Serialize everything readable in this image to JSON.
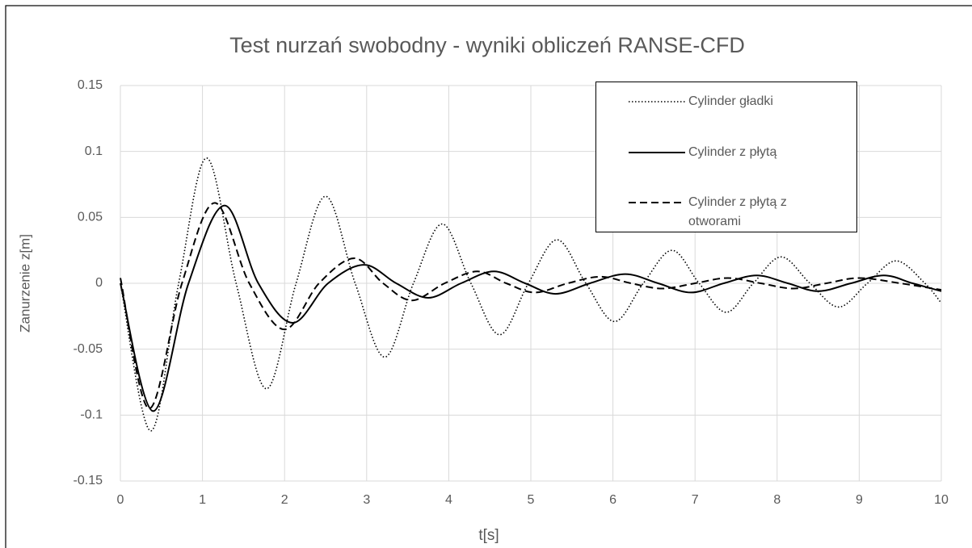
{
  "chart_data": {
    "type": "line",
    "title": "Test nurzań swobodny - wyniki obliczeń RANSE-CFD",
    "xlabel": "t[s]",
    "ylabel": "Zanurzenie z[m]",
    "xlim": [
      0,
      10
    ],
    "xticks": [
      0,
      1,
      2,
      3,
      4,
      5,
      6,
      7,
      8,
      9,
      10
    ],
    "ylim": [
      -0.15,
      0.15
    ],
    "yticks": [
      -0.15,
      -0.1,
      -0.05,
      0,
      0.05,
      0.1,
      0.15
    ],
    "grid": true,
    "legend": "top-right",
    "series": [
      {
        "name": "Cylinder gładki",
        "color": "#000000",
        "dash": "dotted",
        "x": [
          0,
          0.37,
          0.71,
          1.05,
          1.41,
          1.78,
          2.14,
          2.5,
          2.86,
          3.22,
          3.57,
          3.92,
          4.27,
          4.62,
          4.97,
          5.32,
          5.67,
          6.02,
          6.37,
          6.72,
          7.05,
          7.38,
          7.71,
          8.05,
          8.4,
          8.75,
          9.1,
          9.45,
          9.8,
          10
        ],
        "values": [
          0,
          -0.112,
          0,
          0.095,
          0,
          -0.08,
          0,
          0.066,
          0,
          -0.056,
          0,
          0.045,
          0,
          -0.039,
          0,
          0.033,
          0,
          -0.029,
          0,
          0.025,
          0,
          -0.022,
          0,
          0.02,
          0,
          -0.018,
          0,
          0.017,
          0,
          -0.015
        ]
      },
      {
        "name": "Cylinder z płytą",
        "color": "#000000",
        "dash": "solid",
        "x": [
          0,
          0.4,
          0.83,
          1.27,
          1.68,
          2.1,
          2.53,
          2.97,
          3.36,
          3.75,
          4.15,
          4.55,
          4.93,
          5.3,
          5.72,
          6.15,
          6.55,
          6.95,
          7.35,
          7.75,
          8.13,
          8.5,
          8.9,
          9.3,
          9.65,
          10
        ],
        "values": [
          0,
          -0.097,
          0,
          0.059,
          0,
          -0.03,
          0,
          0.014,
          0,
          -0.011,
          0,
          0.009,
          0,
          -0.008,
          0,
          0.007,
          0,
          -0.007,
          0,
          0.006,
          0,
          -0.006,
          0,
          0.006,
          0,
          -0.006
        ]
      },
      {
        "name": "Cylinder z płytą z otworami",
        "color": "#000000",
        "dash": "dashed",
        "x": [
          0,
          0.35,
          0.75,
          1.15,
          1.57,
          2.0,
          2.42,
          2.85,
          3.2,
          3.55,
          3.95,
          4.35,
          4.7,
          5.05,
          5.45,
          5.85,
          6.22,
          6.6,
          7.0,
          7.4,
          7.8,
          8.2,
          8.6,
          9.0,
          9.5,
          10
        ],
        "values": [
          0.004,
          -0.095,
          0,
          0.061,
          0,
          -0.035,
          0,
          0.019,
          0,
          -0.013,
          0,
          0.009,
          0,
          -0.007,
          0,
          0.005,
          0,
          -0.004,
          0,
          0.004,
          0,
          -0.004,
          0,
          0.004,
          0,
          -0.005
        ]
      }
    ]
  }
}
